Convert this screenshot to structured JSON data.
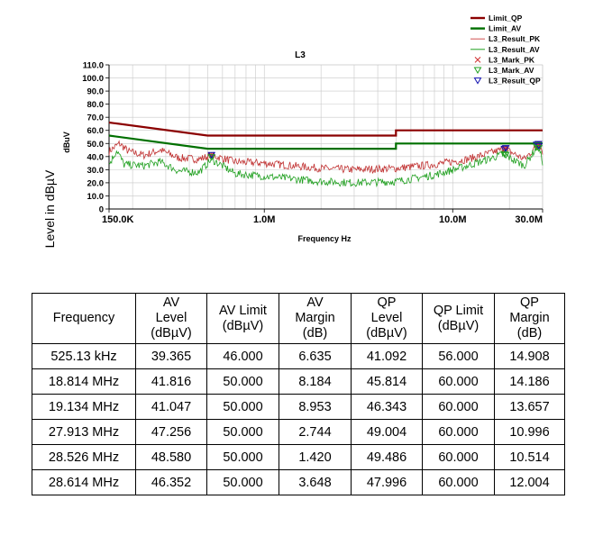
{
  "chart_data": {
    "type": "line",
    "title": "L3",
    "xlabel": "Frequency Hz",
    "ylabel": "Level in dBµV",
    "yunit": "dBuV",
    "x_scale": "log",
    "xlim_hz": [
      150000,
      30000000
    ],
    "ylim": [
      0,
      110
    ],
    "y_ticks": [
      0,
      10,
      20,
      30,
      40,
      50,
      60,
      70,
      80,
      90,
      100,
      110
    ],
    "y_tick_labels": [
      "0",
      "10.0",
      "20.0",
      "30.0",
      "40.0",
      "50.0",
      "60.0",
      "70.0",
      "80.0",
      "90.0",
      "100.0",
      "110.0"
    ],
    "x_ticks_hz": [
      150000,
      1000000,
      10000000,
      30000000
    ],
    "x_tick_labels": [
      "150.0K",
      "1.0M",
      "10.0M",
      "30.0M"
    ],
    "grid": true,
    "legend_position": "top-right",
    "legend": [
      {
        "name": "Limit_QP",
        "color": "#8b0000",
        "style": "thick-line"
      },
      {
        "name": "Limit_AV",
        "color": "#007000",
        "style": "thick-line"
      },
      {
        "name": "L3_Result_PK",
        "color": "#d05050",
        "style": "thin-line"
      },
      {
        "name": "L3_Result_AV",
        "color": "#20a020",
        "style": "thin-line"
      },
      {
        "name": "L3_Mark_PK",
        "color": "#d03030",
        "style": "x-marker"
      },
      {
        "name": "L3_Mark_AV",
        "color": "#20a020",
        "style": "triangle-down"
      },
      {
        "name": "L3_Result_QP",
        "color": "#1010b0",
        "style": "triangle-down"
      }
    ],
    "series": [
      {
        "name": "Limit_QP",
        "color": "#8b0000",
        "points": [
          [
            150000,
            66
          ],
          [
            500000,
            56
          ],
          [
            5000000,
            56
          ],
          [
            5000000,
            60
          ],
          [
            30000000,
            60
          ]
        ]
      },
      {
        "name": "Limit_AV",
        "color": "#007000",
        "points": [
          [
            150000,
            56
          ],
          [
            500000,
            46
          ],
          [
            5000000,
            46
          ],
          [
            5000000,
            50
          ],
          [
            30000000,
            50
          ]
        ]
      },
      {
        "name": "L3_Result_PK",
        "color": "#c03030",
        "points": [
          [
            150000,
            44
          ],
          [
            170000,
            50
          ],
          [
            190000,
            44
          ],
          [
            230000,
            41
          ],
          [
            280000,
            45
          ],
          [
            350000,
            39
          ],
          [
            450000,
            38
          ],
          [
            525130,
            41
          ],
          [
            700000,
            36
          ],
          [
            1000000,
            35
          ],
          [
            2000000,
            31
          ],
          [
            3000000,
            30
          ],
          [
            5000000,
            31
          ],
          [
            8000000,
            34
          ],
          [
            12000000,
            38
          ],
          [
            17000000,
            44
          ],
          [
            18814000,
            46
          ],
          [
            20000000,
            44
          ],
          [
            24000000,
            38
          ],
          [
            27913000,
            48
          ],
          [
            28526000,
            51
          ],
          [
            30000000,
            44
          ]
        ]
      },
      {
        "name": "L3_Result_AV",
        "color": "#20a020",
        "points": [
          [
            150000,
            34
          ],
          [
            165000,
            45
          ],
          [
            180000,
            34
          ],
          [
            230000,
            33
          ],
          [
            280000,
            36
          ],
          [
            350000,
            29
          ],
          [
            450000,
            28
          ],
          [
            525130,
            38
          ],
          [
            700000,
            27
          ],
          [
            1000000,
            25
          ],
          [
            2000000,
            21
          ],
          [
            3000000,
            20
          ],
          [
            5000000,
            21
          ],
          [
            8000000,
            26
          ],
          [
            12000000,
            33
          ],
          [
            17000000,
            40
          ],
          [
            18814000,
            42
          ],
          [
            20000000,
            39
          ],
          [
            24000000,
            33
          ],
          [
            27913000,
            47
          ],
          [
            28526000,
            48
          ],
          [
            30000000,
            36
          ]
        ]
      }
    ],
    "markers": [
      {
        "freq_hz": 525130,
        "av": 39.365,
        "qp": 41.092
      },
      {
        "freq_hz": 18814000,
        "av": 41.816,
        "qp": 45.814
      },
      {
        "freq_hz": 19134000,
        "av": 41.047,
        "qp": 46.343
      },
      {
        "freq_hz": 27913000,
        "av": 47.256,
        "qp": 49.004
      },
      {
        "freq_hz": 28526000,
        "av": 48.58,
        "qp": 49.486
      },
      {
        "freq_hz": 28614000,
        "av": 46.352,
        "qp": 47.996
      }
    ]
  },
  "table": {
    "headers": [
      [
        "Frequency"
      ],
      [
        "AV",
        "Level",
        "(dBµV)"
      ],
      [
        "AV Limit",
        "(dBµV)"
      ],
      [
        "AV",
        "Margin",
        "(dB)"
      ],
      [
        "QP",
        "Level",
        "(dBµV)"
      ],
      [
        "QP Limit",
        "(dBµV)"
      ],
      [
        "QP",
        "Margin",
        "(dB)"
      ]
    ],
    "rows": [
      [
        "525.13 kHz",
        "39.365",
        "46.000",
        "6.635",
        "41.092",
        "56.000",
        "14.908"
      ],
      [
        "18.814 MHz",
        "41.816",
        "50.000",
        "8.184",
        "45.814",
        "60.000",
        "14.186"
      ],
      [
        "19.134 MHz",
        "41.047",
        "50.000",
        "8.953",
        "46.343",
        "60.000",
        "13.657"
      ],
      [
        "27.913 MHz",
        "47.256",
        "50.000",
        "2.744",
        "49.004",
        "60.000",
        "10.996"
      ],
      [
        "28.526 MHz",
        "48.580",
        "50.000",
        "1.420",
        "49.486",
        "60.000",
        "10.514"
      ],
      [
        "28.614 MHz",
        "46.352",
        "50.000",
        "3.648",
        "47.996",
        "60.000",
        "12.004"
      ]
    ]
  }
}
